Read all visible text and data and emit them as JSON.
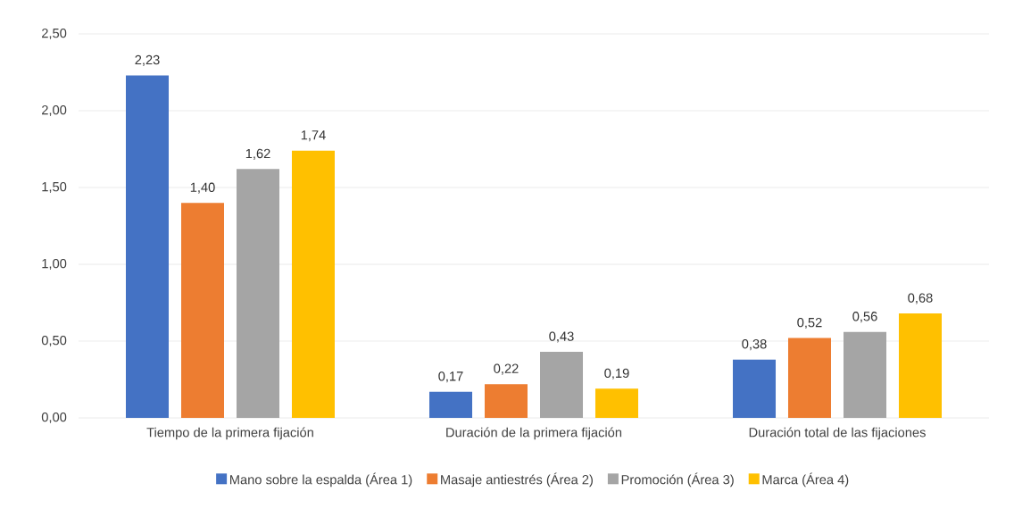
{
  "chart_data": {
    "type": "bar",
    "categories": [
      "Tiempo de la primera fijación",
      "Duración de la primera fijación",
      "Duración total de las fijaciones"
    ],
    "series": [
      {
        "name": "Mano sobre la espalda (Área 1)",
        "color": "#4472c4",
        "values": [
          2.23,
          0.17,
          0.38
        ],
        "value_labels": [
          "2,23",
          "0,17",
          "0,38"
        ]
      },
      {
        "name": "Masaje antiestrés (Área 2)",
        "color": "#ed7d31",
        "values": [
          1.4,
          0.22,
          0.52
        ],
        "value_labels": [
          "1,40",
          "0,22",
          "0,52"
        ]
      },
      {
        "name": "Promoción (Área 3)",
        "color": "#a5a5a5",
        "values": [
          1.62,
          0.43,
          0.56
        ],
        "value_labels": [
          "1,62",
          "0,43",
          "0,56"
        ]
      },
      {
        "name": "Marca (Área 4)",
        "color": "#ffc000",
        "values": [
          1.74,
          0.19,
          0.68
        ],
        "value_labels": [
          "1,74",
          "0,19",
          "0,68"
        ]
      }
    ],
    "ylim": [
      0,
      2.5
    ],
    "yticks": [
      {
        "value": 0,
        "label": "0,00"
      },
      {
        "value": 0.5,
        "label": "0,50"
      },
      {
        "value": 1,
        "label": "1,00"
      },
      {
        "value": 1.5,
        "label": "1,50"
      },
      {
        "value": 2,
        "label": "2,00"
      },
      {
        "value": 2.5,
        "label": "2,50"
      }
    ],
    "grid": "y",
    "legend": "bottom"
  }
}
